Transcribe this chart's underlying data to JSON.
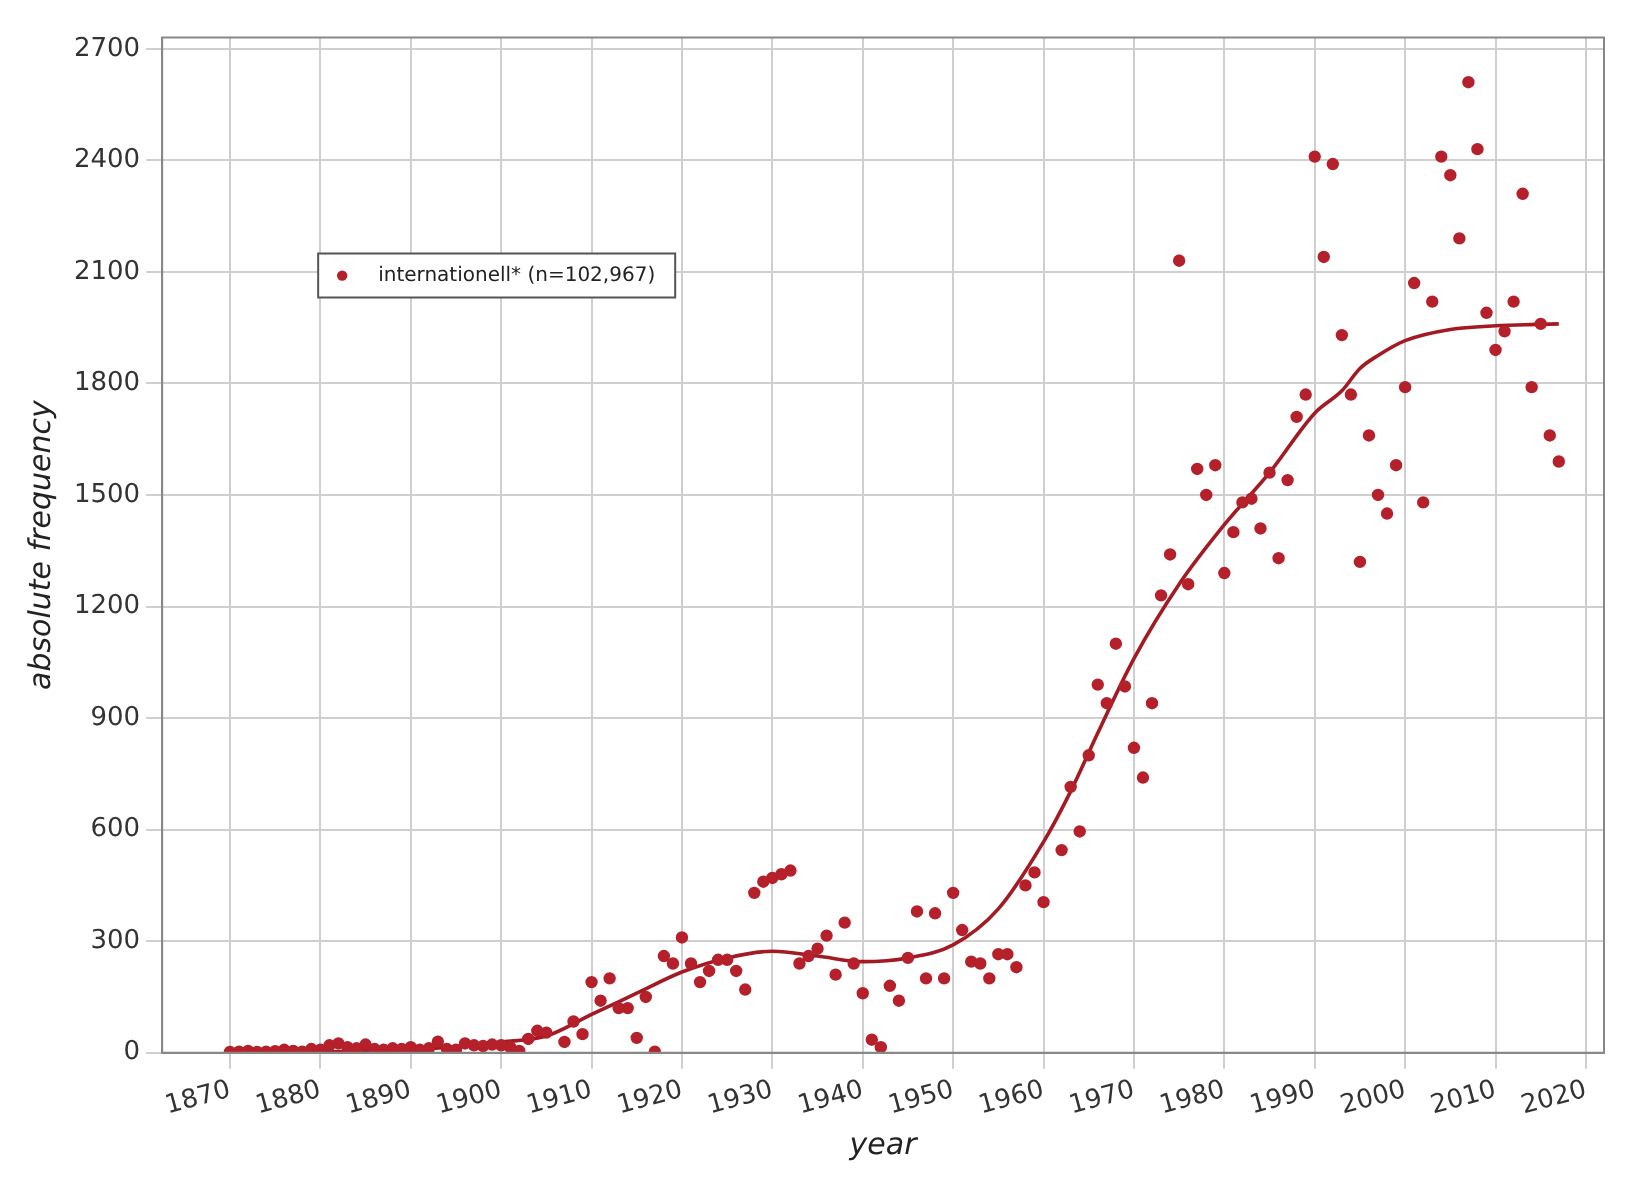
{
  "chart_data": {
    "type": "scatter",
    "xlabel": "year",
    "ylabel": "absolute frequency",
    "xlim": [
      1862.5,
      2022
    ],
    "xticks": [
      1870,
      1880,
      1890,
      1900,
      1910,
      1920,
      1930,
      1940,
      1950,
      1960,
      1970,
      1980,
      1990,
      2000,
      2010,
      2020
    ],
    "ylim": [
      0,
      2730
    ],
    "yticks": [
      0,
      300,
      600,
      900,
      1200,
      1500,
      1800,
      2100,
      2400,
      2700
    ],
    "grid": true,
    "legend": "top left",
    "marker": "circle",
    "series": [
      {
        "name": "internationell* (n=102,967)",
        "color": "#b5202a",
        "x": [
          1870,
          1871,
          1872,
          1873,
          1874,
          1875,
          1876,
          1877,
          1878,
          1879,
          1880,
          1881,
          1882,
          1883,
          1884,
          1885,
          1886,
          1887,
          1888,
          1889,
          1890,
          1891,
          1892,
          1893,
          1894,
          1895,
          1896,
          1897,
          1898,
          1899,
          1900,
          1901,
          1902,
          1903,
          1904,
          1905,
          1907,
          1908,
          1909,
          1910,
          1911,
          1912,
          1913,
          1914,
          1915,
          1916,
          1917,
          1918,
          1919,
          1920,
          1921,
          1922,
          1923,
          1924,
          1925,
          1926,
          1927,
          1928,
          1929,
          1930,
          1931,
          1932,
          1933,
          1934,
          1935,
          1936,
          1937,
          1938,
          1939,
          1940,
          1941,
          1942,
          1943,
          1944,
          1945,
          1946,
          1947,
          1948,
          1949,
          1950,
          1951,
          1952,
          1953,
          1954,
          1955,
          1956,
          1957,
          1958,
          1959,
          1960,
          1962,
          1963,
          1964,
          1965,
          1966,
          1967,
          1968,
          1969,
          1970,
          1971,
          1972,
          1973,
          1974,
          1975,
          1976,
          1977,
          1978,
          1979,
          1980,
          1981,
          1982,
          1983,
          1984,
          1985,
          1986,
          1987,
          1988,
          1989,
          1990,
          1991,
          1992,
          1993,
          1994,
          1995,
          1996,
          1997,
          1998,
          1999,
          2000,
          2001,
          2002,
          2003,
          2004,
          2005,
          2006,
          2007,
          2008,
          2009,
          2010,
          2011,
          2012,
          2013,
          2014,
          2015,
          2016,
          2017
        ],
        "values": [
          2,
          3,
          5,
          2,
          3,
          4,
          8,
          5,
          3,
          10,
          8,
          20,
          25,
          15,
          12,
          22,
          10,
          8,
          12,
          10,
          15,
          8,
          12,
          30,
          10,
          8,
          25,
          20,
          18,
          22,
          20,
          15,
          5,
          37,
          59,
          54,
          29,
          84,
          50,
          190,
          140,
          200,
          120,
          120,
          40,
          150,
          3,
          260,
          240,
          310,
          240,
          190,
          220,
          250,
          250,
          220,
          170,
          430,
          460,
          470,
          480,
          490,
          240,
          260,
          280,
          315,
          210,
          350,
          240,
          160,
          35,
          15,
          180,
          140,
          255,
          380,
          200,
          375,
          200,
          430,
          330,
          245,
          240,
          200,
          265,
          265,
          230,
          450,
          485,
          405,
          545,
          715,
          595,
          800,
          990,
          940,
          1100,
          985,
          820,
          740,
          940,
          1230,
          1340,
          2130,
          1260,
          1570,
          1500,
          1580,
          1290,
          1400,
          1480,
          1490,
          1410,
          1560,
          1330,
          1540,
          1710,
          1770,
          2410,
          2140,
          2390,
          1930,
          1770,
          1320,
          1660,
          1500,
          1450,
          1580,
          1790,
          2070,
          1480,
          2020,
          2410,
          2360,
          2190,
          2610,
          2430,
          1990,
          1890,
          1940,
          2020,
          2310,
          1790,
          1960,
          1660,
          1590
        ]
      },
      {
        "color": "#a31a22",
        "type": "line",
        "marker": "none",
        "x": [
          1870,
          1890,
          1900,
          1905,
          1910,
          1915,
          1920,
          1925,
          1930,
          1935,
          1940,
          1945,
          1950,
          1955,
          1960,
          1963,
          1966,
          1970,
          1975,
          1980,
          1985,
          1990,
          1993,
          1995,
          1997,
          2000,
          2005,
          2010,
          2017
        ],
        "values": [
          0,
          8,
          29,
          45,
          103,
          160,
          217,
          255,
          273,
          260,
          245,
          255,
          290,
          387,
          567,
          703,
          860,
          1060,
          1260,
          1420,
          1560,
          1720,
          1780,
          1840,
          1875,
          1915,
          1945,
          1955,
          1960
        ]
      }
    ]
  }
}
